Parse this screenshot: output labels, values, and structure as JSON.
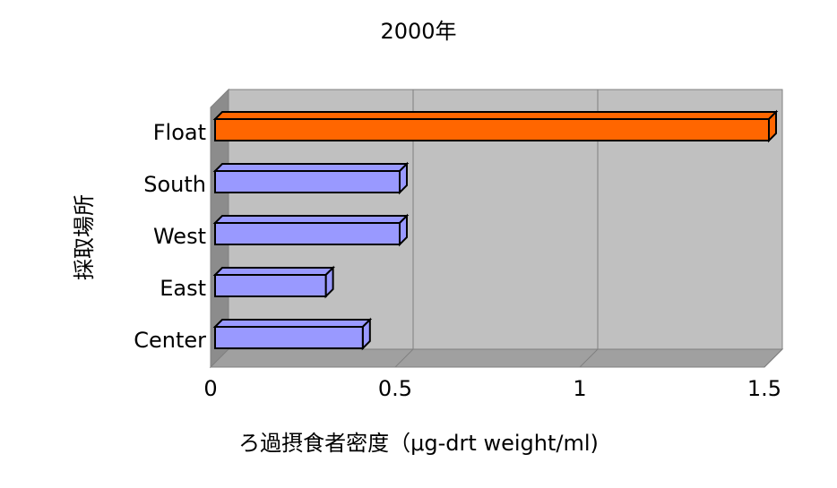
{
  "chart_data": {
    "type": "bar",
    "orientation": "horizontal",
    "title": "2000年",
    "x_label": "ろ過摂食者密度（μg-drt weight/ml)",
    "y_label": "採取場所",
    "categories": [
      "Float",
      "South",
      "West",
      "East",
      "Center"
    ],
    "values": [
      1.5,
      0.5,
      0.5,
      0.3,
      0.4
    ],
    "colors": [
      "#ff6600",
      "#9999ff",
      "#9999ff",
      "#9999ff",
      "#9999ff"
    ],
    "xlim": [
      0,
      1.5
    ],
    "xticks": [
      0,
      0.5,
      1,
      1.5
    ],
    "grid": true
  }
}
